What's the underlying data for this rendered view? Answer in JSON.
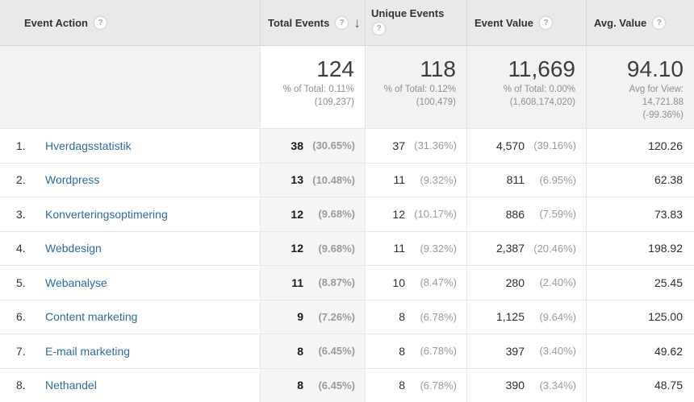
{
  "icons": {
    "help": "?",
    "sort_desc": "↓"
  },
  "table": {
    "columns": [
      {
        "label": "Event Action"
      },
      {
        "label": "Total Events",
        "sorted": "desc"
      },
      {
        "label": "Unique Events"
      },
      {
        "label": "Event Value"
      },
      {
        "label": "Avg. Value"
      }
    ],
    "summary": {
      "total_events": {
        "value": "124",
        "sub1": "% of Total: 0.11%",
        "sub2": "(109,237)"
      },
      "unique_events": {
        "value": "118",
        "sub1": "% of Total: 0.12%",
        "sub2": "(100,479)"
      },
      "event_value": {
        "value": "11,669",
        "sub1": "% of Total: 0.00%",
        "sub2": "(1,608,174,020)"
      },
      "avg_value": {
        "value": "94.10",
        "sub1": "Avg for View:",
        "sub2": "14,721.88",
        "sub3": "(-99.36%)"
      }
    },
    "rows": [
      {
        "rank": "1.",
        "action": "Hverdagsstatistik",
        "total_events": "38",
        "total_events_pct": "(30.65%)",
        "unique_events": "37",
        "unique_events_pct": "(31.36%)",
        "event_value": "4,570",
        "event_value_pct": "(39.16%)",
        "avg_value": "120.26"
      },
      {
        "rank": "2.",
        "action": "Wordpress",
        "total_events": "13",
        "total_events_pct": "(10.48%)",
        "unique_events": "11",
        "unique_events_pct": "(9.32%)",
        "event_value": "811",
        "event_value_pct": "(6.95%)",
        "avg_value": "62.38"
      },
      {
        "rank": "3.",
        "action": "Konverteringsoptimering",
        "total_events": "12",
        "total_events_pct": "(9.68%)",
        "unique_events": "12",
        "unique_events_pct": "(10.17%)",
        "event_value": "886",
        "event_value_pct": "(7.59%)",
        "avg_value": "73.83"
      },
      {
        "rank": "4.",
        "action": "Webdesign",
        "total_events": "12",
        "total_events_pct": "(9.68%)",
        "unique_events": "11",
        "unique_events_pct": "(9.32%)",
        "event_value": "2,387",
        "event_value_pct": "(20.46%)",
        "avg_value": "198.92"
      },
      {
        "rank": "5.",
        "action": "Webanalyse",
        "total_events": "11",
        "total_events_pct": "(8.87%)",
        "unique_events": "10",
        "unique_events_pct": "(8.47%)",
        "event_value": "280",
        "event_value_pct": "(2.40%)",
        "avg_value": "25.45"
      },
      {
        "rank": "6.",
        "action": "Content marketing",
        "total_events": "9",
        "total_events_pct": "(7.26%)",
        "unique_events": "8",
        "unique_events_pct": "(6.78%)",
        "event_value": "1,125",
        "event_value_pct": "(9.64%)",
        "avg_value": "125.00"
      },
      {
        "rank": "7.",
        "action": "E-mail marketing",
        "total_events": "8",
        "total_events_pct": "(6.45%)",
        "unique_events": "8",
        "unique_events_pct": "(6.78%)",
        "event_value": "397",
        "event_value_pct": "(3.40%)",
        "avg_value": "49.62"
      },
      {
        "rank": "8.",
        "action": "Nethandel",
        "total_events": "8",
        "total_events_pct": "(6.45%)",
        "unique_events": "8",
        "unique_events_pct": "(6.78%)",
        "event_value": "390",
        "event_value_pct": "(3.34%)",
        "avg_value": "48.75"
      }
    ]
  }
}
